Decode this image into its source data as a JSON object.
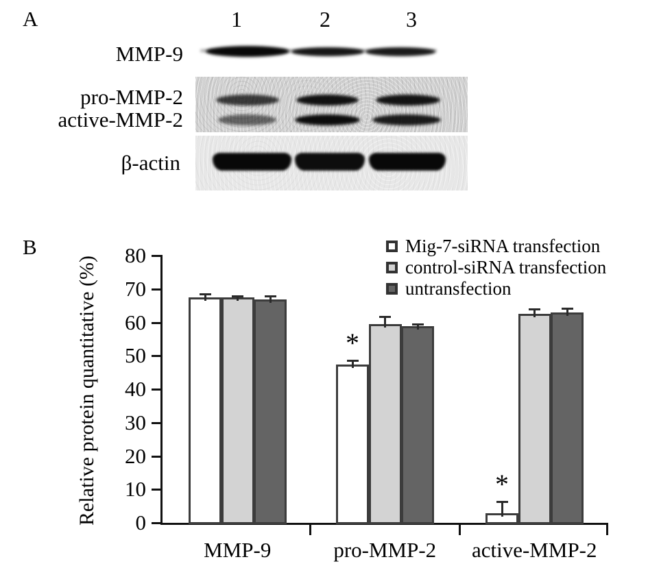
{
  "panel_a": {
    "label": "A",
    "lanes": [
      "1",
      "2",
      "3"
    ],
    "blot_rows": [
      {
        "label": "MMP-9",
        "band_intensities": [
          1.0,
          0.9,
          0.88
        ]
      },
      {
        "label": "pro-MMP-2",
        "band_intensities": [
          0.7,
          0.95,
          0.93
        ]
      },
      {
        "label": "active-MMP-2",
        "band_intensities": [
          0.42,
          0.97,
          0.88
        ]
      },
      {
        "label": "β-actin",
        "band_intensities": [
          1.0,
          0.97,
          1.0
        ]
      }
    ]
  },
  "panel_b": {
    "label": "B"
  },
  "chart_data": {
    "type": "bar",
    "title": "",
    "xlabel": "",
    "ylabel": "Relative protein quantitative (%)",
    "ylim": [
      0,
      80
    ],
    "yticks": [
      0,
      10,
      20,
      30,
      40,
      50,
      60,
      70,
      80
    ],
    "grid": false,
    "legend_position": "top-right",
    "significance_marker": "*",
    "categories": [
      "MMP-9",
      "pro-MMP-2",
      "active-MMP-2"
    ],
    "series": [
      {
        "name": "Mig-7-siRNA transfection",
        "fill": "#ffffff",
        "values": [
          67.4,
          47.4,
          2.9
        ],
        "errors": [
          0.8,
          1.0,
          3.2
        ],
        "significant": [
          false,
          true,
          true
        ]
      },
      {
        "name": "control-siRNA transfection",
        "fill": "#d3d3d3",
        "values": [
          67.4,
          59.5,
          62.6
        ],
        "errors": [
          0.3,
          2.0,
          1.2
        ],
        "significant": [
          false,
          false,
          false
        ]
      },
      {
        "name": "untransfection",
        "fill": "#646464",
        "values": [
          66.8,
          58.8,
          63.0
        ],
        "errors": [
          0.8,
          0.4,
          1.0
        ],
        "significant": [
          false,
          false,
          false
        ]
      }
    ]
  }
}
